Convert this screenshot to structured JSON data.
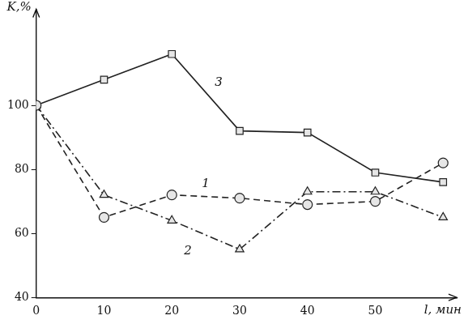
{
  "chart_data": {
    "type": "line",
    "x_label": "l, мин",
    "y_label": "K,%",
    "x": [
      0,
      10,
      20,
      30,
      40,
      50,
      60
    ],
    "series": [
      {
        "name": "1",
        "color": "#222222",
        "marker": "circle",
        "line_style": "dashed",
        "values": [
          100,
          65,
          72,
          71,
          69,
          70,
          82
        ]
      },
      {
        "name": "2",
        "color": "#222222",
        "marker": "triangle",
        "line_style": "dash_dot",
        "values": [
          100,
          72,
          64,
          55,
          73,
          73,
          65
        ]
      },
      {
        "name": "3",
        "color": "#222222",
        "marker": "rect",
        "line_style": "solid",
        "values": [
          100,
          108,
          116,
          92,
          91.5,
          79,
          76
        ]
      }
    ],
    "xlim": [
      0,
      62
    ],
    "xticks": [
      0,
      10,
      20,
      30,
      40,
      50
    ],
    "ylim": [
      40,
      130
    ],
    "yticks": [
      40,
      60,
      80,
      100
    ],
    "grid": false
  }
}
